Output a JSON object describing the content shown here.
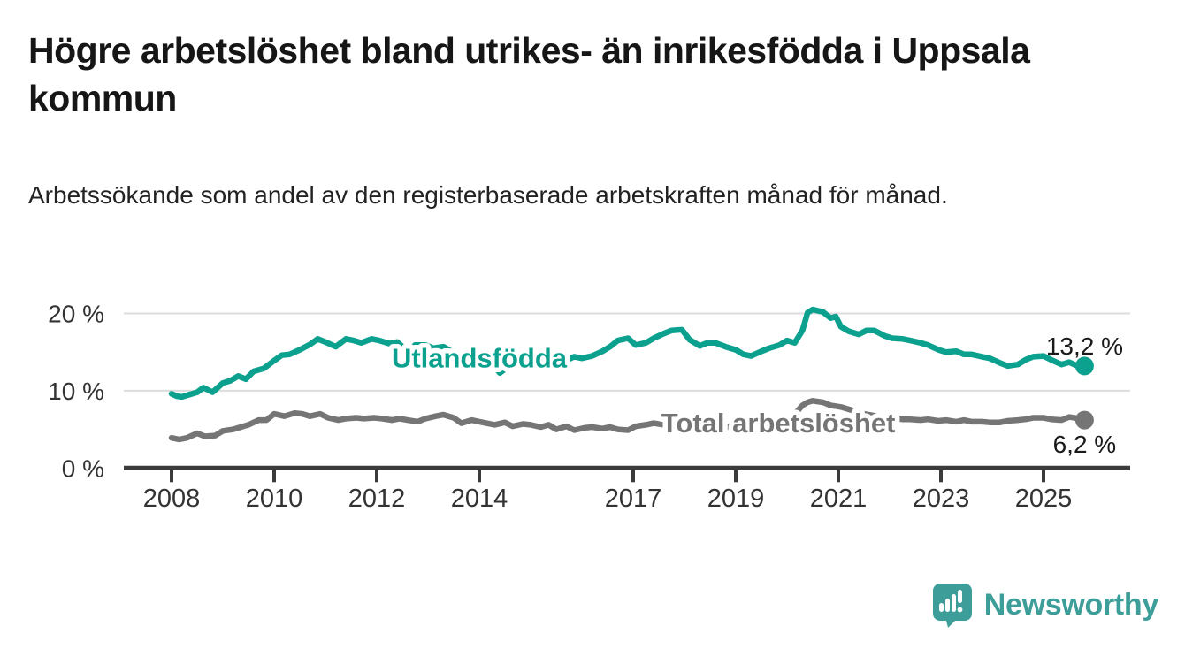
{
  "chart_data": {
    "type": "line",
    "title": "Högre arbetslöshet bland utrikes- än inrikesfödda i Uppsala kommun",
    "subtitle": "Arbetssökande som andel av den registerbaserade arbetskraften månad för månad.",
    "grid": "horizontal",
    "legend_position": "inline-labels",
    "x_axis": {
      "ticks": [
        2008,
        2010,
        2012,
        2014,
        2017,
        2019,
        2021,
        2023,
        2025
      ],
      "range": [
        2007.1,
        2026.7
      ]
    },
    "y_axis": {
      "ticks": [
        0,
        10,
        20
      ],
      "tick_labels": [
        "0 %",
        "10 %",
        "20 %"
      ],
      "range": [
        0,
        22.8
      ]
    },
    "series": [
      {
        "name": "Utlandsfödda",
        "color": "#0ba18e",
        "end_label": "13,2 %",
        "end_value": 13.2,
        "label_x": 2014.0,
        "label_y": 13.0,
        "points": [
          [
            2008.0,
            9.6
          ],
          [
            2008.1,
            9.3
          ],
          [
            2008.2,
            9.2
          ],
          [
            2008.35,
            9.5
          ],
          [
            2008.5,
            9.8
          ],
          [
            2008.62,
            10.4
          ],
          [
            2008.8,
            9.8
          ],
          [
            2009.0,
            11.0
          ],
          [
            2009.15,
            11.3
          ],
          [
            2009.3,
            11.9
          ],
          [
            2009.45,
            11.5
          ],
          [
            2009.6,
            12.5
          ],
          [
            2009.8,
            12.9
          ],
          [
            2010.0,
            13.9
          ],
          [
            2010.15,
            14.6
          ],
          [
            2010.3,
            14.7
          ],
          [
            2010.5,
            15.3
          ],
          [
            2010.7,
            16.0
          ],
          [
            2010.85,
            16.7
          ],
          [
            2011.0,
            16.3
          ],
          [
            2011.2,
            15.7
          ],
          [
            2011.4,
            16.7
          ],
          [
            2011.55,
            16.5
          ],
          [
            2011.7,
            16.2
          ],
          [
            2011.9,
            16.7
          ],
          [
            2012.05,
            16.5
          ],
          [
            2012.25,
            16.1
          ],
          [
            2012.4,
            16.3
          ],
          [
            2012.6,
            15.1
          ],
          [
            2012.75,
            15.9
          ],
          [
            2012.95,
            15.9
          ],
          [
            2013.1,
            15.5
          ],
          [
            2013.3,
            15.7
          ],
          [
            2013.45,
            15.1
          ],
          [
            2013.6,
            14.5
          ],
          [
            2013.8,
            15.1
          ],
          [
            2014.0,
            15.0
          ],
          [
            2014.2,
            13.9
          ],
          [
            2014.4,
            12.3
          ],
          [
            2014.6,
            13.3
          ],
          [
            2014.8,
            14.0
          ],
          [
            2015.0,
            14.3
          ],
          [
            2015.2,
            13.8
          ],
          [
            2015.45,
            13.2
          ],
          [
            2015.65,
            13.8
          ],
          [
            2015.85,
            14.4
          ],
          [
            2016.0,
            14.2
          ],
          [
            2016.2,
            14.5
          ],
          [
            2016.4,
            15.1
          ],
          [
            2016.55,
            15.7
          ],
          [
            2016.7,
            16.5
          ],
          [
            2016.9,
            16.8
          ],
          [
            2017.05,
            15.9
          ],
          [
            2017.25,
            16.2
          ],
          [
            2017.4,
            16.8
          ],
          [
            2017.6,
            17.4
          ],
          [
            2017.75,
            17.8
          ],
          [
            2017.95,
            17.9
          ],
          [
            2018.1,
            16.6
          ],
          [
            2018.3,
            15.8
          ],
          [
            2018.45,
            16.2
          ],
          [
            2018.6,
            16.2
          ],
          [
            2018.8,
            15.7
          ],
          [
            2019.0,
            15.3
          ],
          [
            2019.15,
            14.7
          ],
          [
            2019.3,
            14.5
          ],
          [
            2019.5,
            15.1
          ],
          [
            2019.65,
            15.5
          ],
          [
            2019.85,
            15.9
          ],
          [
            2020.0,
            16.5
          ],
          [
            2020.15,
            16.2
          ],
          [
            2020.3,
            17.8
          ],
          [
            2020.4,
            20.1
          ],
          [
            2020.5,
            20.5
          ],
          [
            2020.7,
            20.2
          ],
          [
            2020.85,
            19.4
          ],
          [
            2020.95,
            19.6
          ],
          [
            2021.05,
            18.3
          ],
          [
            2021.2,
            17.7
          ],
          [
            2021.4,
            17.3
          ],
          [
            2021.55,
            17.8
          ],
          [
            2021.7,
            17.8
          ],
          [
            2021.9,
            17.1
          ],
          [
            2022.05,
            16.8
          ],
          [
            2022.25,
            16.7
          ],
          [
            2022.4,
            16.5
          ],
          [
            2022.6,
            16.2
          ],
          [
            2022.75,
            15.9
          ],
          [
            2022.95,
            15.3
          ],
          [
            2023.1,
            15.0
          ],
          [
            2023.3,
            15.1
          ],
          [
            2023.45,
            14.7
          ],
          [
            2023.6,
            14.7
          ],
          [
            2023.8,
            14.4
          ],
          [
            2023.95,
            14.2
          ],
          [
            2024.15,
            13.6
          ],
          [
            2024.3,
            13.2
          ],
          [
            2024.5,
            13.4
          ],
          [
            2024.65,
            14.0
          ],
          [
            2024.8,
            14.4
          ],
          [
            2025.0,
            14.5
          ],
          [
            2025.15,
            14.0
          ],
          [
            2025.35,
            13.4
          ],
          [
            2025.5,
            13.7
          ],
          [
            2025.7,
            13.1
          ],
          [
            2025.8,
            13.2
          ]
        ]
      },
      {
        "name": "Total arbetslöshet",
        "color": "#757575",
        "end_label": "6,2 %",
        "end_value": 6.2,
        "label_x": 2019.83,
        "label_y": 4.6,
        "points": [
          [
            2008.0,
            3.9
          ],
          [
            2008.15,
            3.7
          ],
          [
            2008.3,
            3.9
          ],
          [
            2008.5,
            4.5
          ],
          [
            2008.65,
            4.1
          ],
          [
            2008.85,
            4.2
          ],
          [
            2009.0,
            4.8
          ],
          [
            2009.2,
            5.0
          ],
          [
            2009.35,
            5.3
          ],
          [
            2009.5,
            5.6
          ],
          [
            2009.7,
            6.2
          ],
          [
            2009.85,
            6.2
          ],
          [
            2010.0,
            7.0
          ],
          [
            2010.2,
            6.7
          ],
          [
            2010.4,
            7.1
          ],
          [
            2010.55,
            7.0
          ],
          [
            2010.7,
            6.7
          ],
          [
            2010.9,
            7.0
          ],
          [
            2011.05,
            6.5
          ],
          [
            2011.25,
            6.2
          ],
          [
            2011.4,
            6.4
          ],
          [
            2011.6,
            6.5
          ],
          [
            2011.75,
            6.4
          ],
          [
            2011.95,
            6.5
          ],
          [
            2012.1,
            6.4
          ],
          [
            2012.3,
            6.2
          ],
          [
            2012.45,
            6.4
          ],
          [
            2012.6,
            6.2
          ],
          [
            2012.8,
            6.0
          ],
          [
            2012.95,
            6.4
          ],
          [
            2013.15,
            6.7
          ],
          [
            2013.3,
            6.9
          ],
          [
            2013.5,
            6.5
          ],
          [
            2013.65,
            5.8
          ],
          [
            2013.85,
            6.2
          ],
          [
            2014.0,
            6.0
          ],
          [
            2014.3,
            5.6
          ],
          [
            2014.5,
            5.9
          ],
          [
            2014.65,
            5.4
          ],
          [
            2014.85,
            5.7
          ],
          [
            2015.0,
            5.6
          ],
          [
            2015.2,
            5.3
          ],
          [
            2015.35,
            5.6
          ],
          [
            2015.5,
            5.0
          ],
          [
            2015.7,
            5.4
          ],
          [
            2015.85,
            4.9
          ],
          [
            2016.05,
            5.2
          ],
          [
            2016.2,
            5.3
          ],
          [
            2016.4,
            5.1
          ],
          [
            2016.55,
            5.3
          ],
          [
            2016.7,
            5.0
          ],
          [
            2016.9,
            4.9
          ],
          [
            2017.05,
            5.4
          ],
          [
            2017.25,
            5.6
          ],
          [
            2017.4,
            5.8
          ],
          [
            2017.6,
            5.6
          ],
          [
            2017.75,
            5.8
          ],
          [
            2017.95,
            5.6
          ],
          [
            2018.15,
            5.7
          ],
          [
            2018.4,
            5.5
          ],
          [
            2018.65,
            5.4
          ],
          [
            2018.9,
            5.3
          ],
          [
            2019.1,
            5.3
          ],
          [
            2019.35,
            5.4
          ],
          [
            2019.6,
            5.6
          ],
          [
            2019.85,
            5.8
          ],
          [
            2020.1,
            6.6
          ],
          [
            2020.3,
            8.1
          ],
          [
            2020.4,
            8.5
          ],
          [
            2020.5,
            8.7
          ],
          [
            2020.7,
            8.5
          ],
          [
            2020.85,
            8.1
          ],
          [
            2021.05,
            7.9
          ],
          [
            2021.25,
            7.5
          ],
          [
            2021.5,
            7.0
          ],
          [
            2021.75,
            6.7
          ],
          [
            2022.0,
            6.5
          ],
          [
            2022.25,
            6.3
          ],
          [
            2022.4,
            6.3
          ],
          [
            2022.6,
            6.2
          ],
          [
            2022.75,
            6.3
          ],
          [
            2022.95,
            6.1
          ],
          [
            2023.1,
            6.2
          ],
          [
            2023.3,
            6.0
          ],
          [
            2023.45,
            6.2
          ],
          [
            2023.6,
            6.0
          ],
          [
            2023.8,
            6.0
          ],
          [
            2023.95,
            5.9
          ],
          [
            2024.15,
            5.9
          ],
          [
            2024.3,
            6.1
          ],
          [
            2024.5,
            6.2
          ],
          [
            2024.65,
            6.3
          ],
          [
            2024.8,
            6.5
          ],
          [
            2025.0,
            6.5
          ],
          [
            2025.15,
            6.3
          ],
          [
            2025.35,
            6.2
          ],
          [
            2025.5,
            6.6
          ],
          [
            2025.7,
            6.4
          ],
          [
            2025.8,
            6.2
          ]
        ]
      }
    ],
    "colors": {
      "gridline": "#dcdcdc",
      "axis": "#3b3b3b",
      "axis_text": "#333333",
      "end_label_text": "#1a1a1a"
    }
  },
  "branding": {
    "name": "Newsworthy",
    "color": "#3d9e99",
    "icon": "bar-chart-speech-bubble-icon"
  }
}
